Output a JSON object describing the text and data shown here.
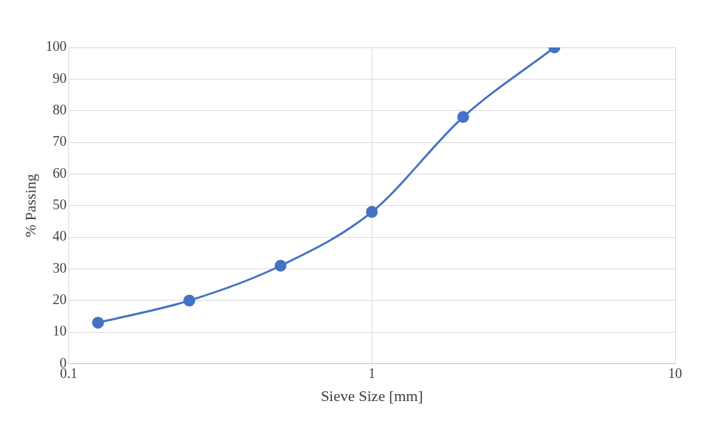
{
  "chart_data": {
    "type": "line",
    "xlabel": "Sieve Size [mm]",
    "ylabel": "% Passing",
    "x": [
      0.125,
      0.25,
      0.5,
      1,
      2,
      4
    ],
    "series": [
      {
        "color": "#4472c4",
        "values": [
          13,
          20,
          31,
          48,
          78,
          100
        ]
      }
    ],
    "log": "x",
    "xlim": [
      0.1,
      10
    ],
    "xticks": [
      0.1,
      1,
      10
    ],
    "ylim": [
      0,
      100
    ],
    "yticks": [
      0,
      10,
      20,
      30,
      40,
      50,
      60,
      70,
      80,
      90,
      100
    ],
    "grid": true,
    "legend": false,
    "marker": "circle",
    "line_style": "solid"
  }
}
